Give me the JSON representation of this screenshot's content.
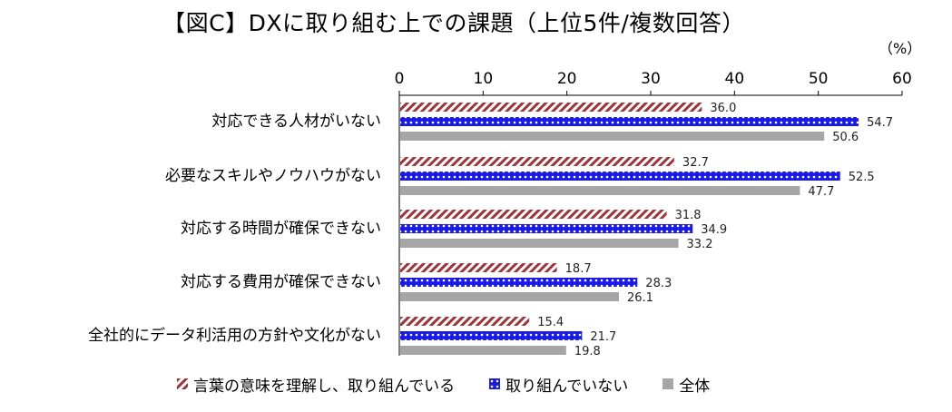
{
  "title": "【図C】DXに取り組む上での課題（上位5件/複数回答）",
  "unit": "（%）",
  "colors": {
    "series1": "#a0333a",
    "series2": "#1a1ae6",
    "series3": "#a6a6a6"
  },
  "chart_data": {
    "type": "bar",
    "orientation": "horizontal",
    "title": "【図C】DXに取り組む上での課題（上位5件/複数回答）",
    "xlim": [
      0,
      60
    ],
    "xticks": [
      "0",
      "10",
      "20",
      "30",
      "40",
      "50",
      "60"
    ],
    "xaxis_position": "top",
    "grid": false,
    "legend_position": "bottom",
    "categories": [
      "対応できる人材がいない",
      "必要なスキルやノウハウがない",
      "対応する時間が確保できない",
      "対応する費用が確保できない",
      "全社的にデータ利活用の方針や文化がない"
    ],
    "series": [
      {
        "name": "言葉の意味を理解し、取り組んでいる",
        "values": [
          36.0,
          32.7,
          31.8,
          18.7,
          15.4
        ],
        "labels": [
          "36.0",
          "32.7",
          "31.8",
          "18.7",
          "15.4"
        ]
      },
      {
        "name": "取り組んでいない",
        "values": [
          54.7,
          52.5,
          34.9,
          28.3,
          21.7
        ],
        "labels": [
          "54.7",
          "52.5",
          "34.9",
          "28.3",
          "21.7"
        ]
      },
      {
        "name": "全体",
        "values": [
          50.6,
          47.7,
          33.2,
          26.1,
          19.8
        ],
        "labels": [
          "50.6",
          "47.7",
          "33.2",
          "26.1",
          "19.8"
        ]
      }
    ]
  }
}
